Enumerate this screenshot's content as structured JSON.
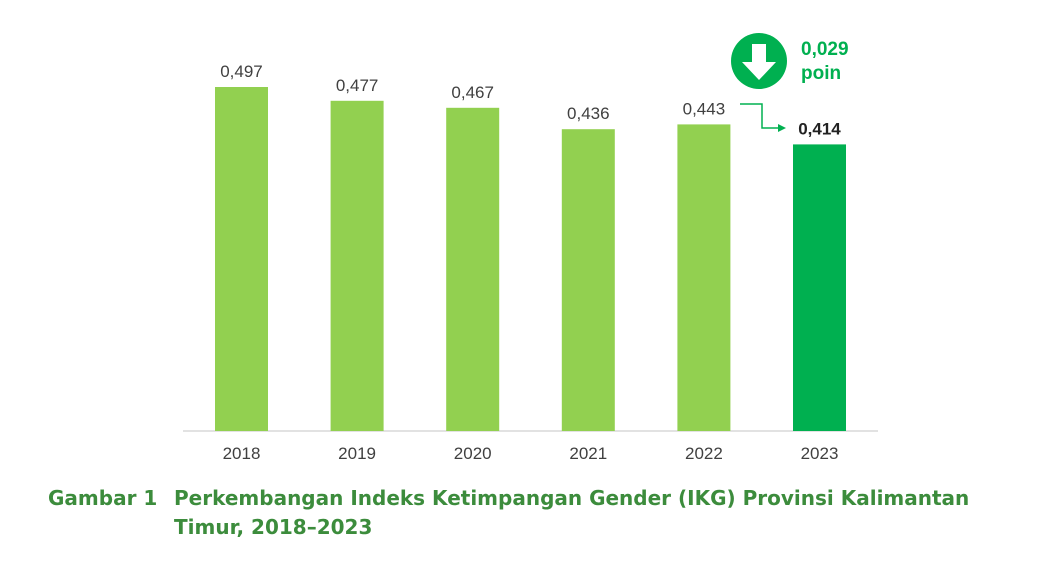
{
  "chart_data": {
    "type": "bar",
    "categories": [
      "2018",
      "2019",
      "2020",
      "2021",
      "2022",
      "2023"
    ],
    "values": [
      0.497,
      0.477,
      0.467,
      0.436,
      0.443,
      0.414
    ],
    "value_labels": [
      "0,497",
      "0,477",
      "0,467",
      "0,436",
      "0,443",
      "0,414"
    ],
    "highlight_index": 5,
    "ylim": [
      0,
      0.497
    ],
    "grid": false,
    "colors": {
      "bar": "#92d050",
      "highlight": "#00b050",
      "arrow": "#00b050"
    },
    "change": {
      "icon": "down-arrow-icon",
      "value": "0,029",
      "unit": "poin"
    }
  },
  "caption": {
    "number": "Gambar 1",
    "text": "Perkembangan Indeks Ketimpangan Gender (IKG) Provinsi Kalimantan Timur, 2018–2023"
  }
}
